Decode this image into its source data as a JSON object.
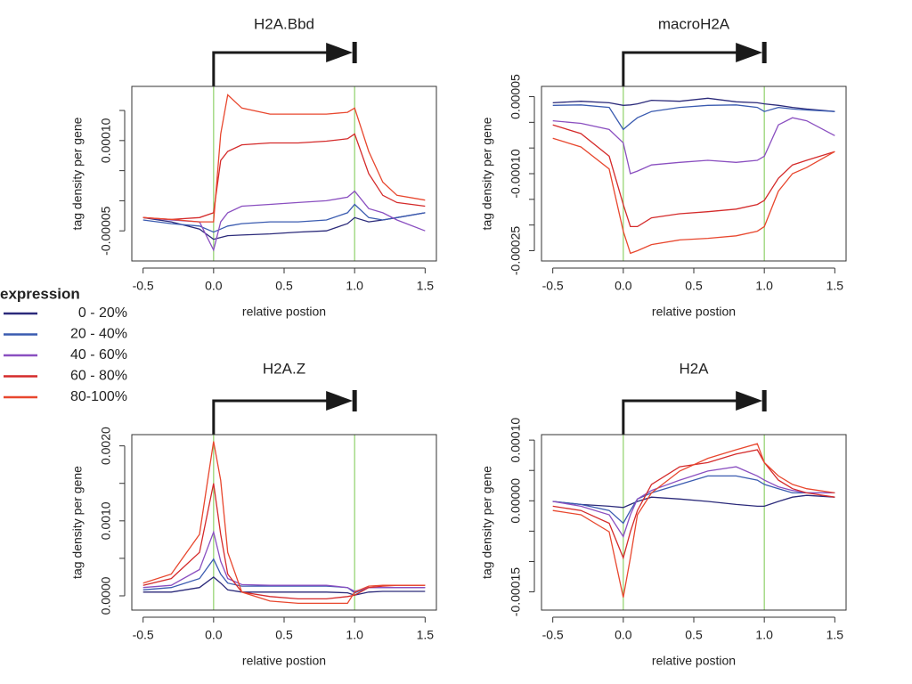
{
  "chart_data": [
    {
      "type": "line",
      "title": "H2A.Bbd",
      "xlabel": "relative postion",
      "ylabel": "tag density per gene",
      "legend_title": "expression",
      "xlim": [
        -0.58,
        1.58
      ],
      "ylim": [
        -0.0001,
        0.00019
      ],
      "xticks": [
        -0.5,
        {
          "value": 0,
          "label": "0.0"
        },
        0.5,
        {
          "value": 1,
          "label": "1.0"
        },
        1.5
      ],
      "yticks": [
        -5e-05,
        {
          "value": 0.0001,
          "label": "0.00010"
        }
      ],
      "yminor_ticks": [
        0,
        5e-05,
        0.00015
      ],
      "vlines": [
        0,
        1
      ],
      "vline_color": "#8fd16a",
      "x": [
        -0.5,
        -0.3,
        -0.1,
        0,
        0.05,
        0.1,
        0.2,
        0.4,
        0.6,
        0.8,
        0.95,
        1,
        1.1,
        1.2,
        1.3,
        1.5
      ],
      "series": [
        {
          "name": "0 - 20%",
          "color": "#2b2a7a",
          "values": [
            -2.8e-05,
            -3.5e-05,
            -4.7e-05,
            -6.4e-05,
            -6.1e-05,
            -5.8e-05,
            -5.7e-05,
            -5.5e-05,
            -5.2e-05,
            -5e-05,
            -3.8e-05,
            -2.8e-05,
            -3.5e-05,
            -3.2e-05,
            -2.8e-05,
            -2e-05
          ]
        },
        {
          "name": "20 - 40%",
          "color": "#3a5bb0",
          "values": [
            -3.2e-05,
            -3.8e-05,
            -4.2e-05,
            -5.2e-05,
            -4.7e-05,
            -4.2e-05,
            -3.8e-05,
            -3.5e-05,
            -3.5e-05,
            -3.2e-05,
            -2e-05,
            -6e-06,
            -2.8e-05,
            -3.2e-05,
            -2.8e-05,
            -2e-05
          ]
        },
        {
          "name": "40 - 60%",
          "color": "#8a4fc0",
          "values": [
            -2.8e-05,
            -3.2e-05,
            -3.5e-05,
            -8.2e-05,
            -3.5e-05,
            -2e-05,
            -9e-06,
            -6e-06,
            -3e-06,
            0,
            6e-06,
            1.6e-05,
            -1.3e-05,
            -2e-05,
            -3.2e-05,
            -5e-05
          ]
        },
        {
          "name": "60 - 80%",
          "color": "#d42a2a",
          "values": [
            -2.8e-05,
            -3.1e-05,
            -2.8e-05,
            -2e-05,
            6.7e-05,
            8.2e-05,
            9.3e-05,
            9.6e-05,
            9.6e-05,
            9.9e-05,
            0.000103,
            0.000111,
            4.5e-05,
            9e-06,
            -3e-06,
            -9e-06
          ]
        },
        {
          "name": "80-100%",
          "color": "#e8472e",
          "values": [
            -2.8e-05,
            -3.1e-05,
            -3.5e-05,
            -3.5e-05,
            0.000111,
            0.000176,
            0.000154,
            0.000144,
            0.000144,
            0.000144,
            0.000147,
            0.000154,
            8.2e-05,
            3.1e-05,
            9e-06,
            1e-06
          ]
        }
      ]
    },
    {
      "type": "line",
      "title": "macroH2A",
      "xlabel": "relative postion",
      "ylabel": "tag density per gene",
      "xlim": [
        -0.58,
        1.58
      ],
      "ylim": [
        -0.00027,
        7e-05
      ],
      "xticks": [
        -0.5,
        {
          "value": 0,
          "label": "0.0"
        },
        0.5,
        {
          "value": 1,
          "label": "1.0"
        },
        1.5
      ],
      "yticks": [
        5e-05,
        {
          "value": -0.0001,
          "label": "-0.00010"
        },
        -0.00025
      ],
      "yminor_ticks": [
        0,
        -5e-05,
        -0.00015,
        -0.0002
      ],
      "vlines": [
        0,
        1
      ],
      "vline_color": "#8fd16a",
      "x": [
        -0.5,
        -0.3,
        -0.1,
        0,
        0.05,
        0.1,
        0.2,
        0.4,
        0.6,
        0.8,
        0.95,
        1,
        1.1,
        1.2,
        1.3,
        1.5
      ],
      "series": [
        {
          "name": "0 - 20%",
          "color": "#2b2a7a",
          "values": [
            3.8e-05,
            4.1e-05,
            3.8e-05,
            3.3e-05,
            3.4e-05,
            3.6e-05,
            4.3e-05,
            4.1e-05,
            4.7e-05,
            4e-05,
            3.8e-05,
            3.6e-05,
            3.3e-05,
            2.9e-05,
            2.6e-05,
            2.1e-05
          ]
        },
        {
          "name": "20 - 40%",
          "color": "#3a5bb0",
          "values": [
            3.3e-05,
            3.4e-05,
            2.9e-05,
            -1.4e-05,
            -2e-06,
            9e-06,
            2.1e-05,
            2.9e-05,
            3.3e-05,
            3.4e-05,
            2.9e-05,
            2.1e-05,
            2.9e-05,
            2.6e-05,
            2.4e-05,
            2.1e-05
          ]
        },
        {
          "name": "40 - 60%",
          "color": "#8a4fc0",
          "values": [
            3e-06,
            -2e-06,
            -1.4e-05,
            -4e-05,
            -0.0001,
            -9.5e-05,
            -8.3e-05,
            -7.8e-05,
            -7.4e-05,
            -7.8e-05,
            -7.4e-05,
            -6.6e-05,
            -5e-06,
            9e-06,
            3e-06,
            -2.6e-05
          ]
        },
        {
          "name": "60 - 80%",
          "color": "#d42a2a",
          "values": [
            -5e-06,
            -2.2e-05,
            -6.6e-05,
            -0.00016,
            -0.000203,
            -0.000203,
            -0.000186,
            -0.000178,
            -0.000174,
            -0.000169,
            -0.00016,
            -0.000152,
            -0.000109,
            -8.3e-05,
            -7.4e-05,
            -5.7e-05
          ]
        },
        {
          "name": "80-100%",
          "color": "#e8472e",
          "values": [
            -3.1e-05,
            -4.8e-05,
            -9.1e-05,
            -0.000212,
            -0.000255,
            -0.00025,
            -0.000238,
            -0.000229,
            -0.000226,
            -0.000221,
            -0.000212,
            -0.000203,
            -0.000134,
            -0.0001,
            -8.8e-05,
            -5.7e-05
          ]
        }
      ]
    },
    {
      "type": "line",
      "title": "H2A.Z",
      "xlabel": "relative postion",
      "ylabel": "tag density per gene",
      "xlim": [
        -0.58,
        1.58
      ],
      "ylim": [
        -0.00019,
        0.00215
      ],
      "xticks": [
        -0.5,
        {
          "value": 0,
          "label": "0.0"
        },
        0.5,
        {
          "value": 1,
          "label": "1.0"
        },
        1.5
      ],
      "yticks": [
        {
          "value": 0,
          "label": "0.0000"
        },
        {
          "value": 0.001,
          "label": "0.0010"
        },
        {
          "value": 0.002,
          "label": "0.0020"
        }
      ],
      "yminor_ticks": [
        0.0005,
        0.0015
      ],
      "vlines": [
        0,
        1
      ],
      "vline_color": "#8fd16a",
      "x": [
        -0.5,
        -0.3,
        -0.1,
        0,
        0.05,
        0.1,
        0.2,
        0.4,
        0.6,
        0.8,
        0.95,
        1,
        1.1,
        1.2,
        1.3,
        1.5
      ],
      "series": [
        {
          "name": "0 - 20%",
          "color": "#2b2a7a",
          "values": [
            5e-05,
            5e-05,
            0.00011,
            0.00025,
            0.00017,
            8e-05,
            5e-05,
            5e-05,
            5e-05,
            5e-05,
            4e-05,
            1e-05,
            5e-05,
            6e-05,
            6e-05,
            6e-05
          ]
        },
        {
          "name": "20 - 40%",
          "color": "#3a5bb0",
          "values": [
            8e-05,
            0.00011,
            0.00023,
            0.00049,
            0.00029,
            0.00017,
            0.00013,
            0.00013,
            0.00013,
            0.00013,
            0.00011,
            4e-05,
            0.00011,
            0.00011,
            0.00011,
            0.00011
          ]
        },
        {
          "name": "40 - 60%",
          "color": "#8a4fc0",
          "values": [
            0.00011,
            0.00014,
            0.00035,
            0.00085,
            0.00046,
            0.00023,
            0.00015,
            0.00014,
            0.00014,
            0.00014,
            0.00011,
            6e-05,
            0.00011,
            0.00011,
            0.00011,
            0.00011
          ]
        },
        {
          "name": "60 - 80%",
          "color": "#d42a2a",
          "values": [
            0.00014,
            0.00023,
            0.00058,
            0.0015,
            0.00082,
            0.00029,
            5e-05,
            -1e-05,
            -4e-05,
            -4e-05,
            -1e-05,
            1e-05,
            0.00011,
            0.00013,
            0.00014,
            0.00014
          ]
        },
        {
          "name": "80-100%",
          "color": "#e8472e",
          "values": [
            0.00017,
            0.00029,
            0.00082,
            0.00206,
            0.00154,
            0.00058,
            5e-05,
            -7e-05,
            -0.0001,
            -0.0001,
            -0.0001,
            5e-05,
            0.00013,
            0.00014,
            0.00014,
            0.00014
          ]
        }
      ]
    },
    {
      "type": "line",
      "title": "H2A",
      "xlabel": "relative postion",
      "ylabel": "tag density per gene",
      "xlim": [
        -0.58,
        1.58
      ],
      "ylim": [
        -0.00018,
        0.000109
      ],
      "xticks": [
        -0.5,
        {
          "value": 0,
          "label": "0.0"
        },
        0.5,
        {
          "value": 1,
          "label": "1.0"
        },
        1.5
      ],
      "yticks": [
        {
          "value": 0.0001,
          "label": "0.00010"
        },
        {
          "value": 0,
          "label": "0.00000"
        },
        -0.00015
      ],
      "yminor_ticks": [
        5e-05,
        -5e-05,
        -0.0001
      ],
      "vlines": [
        0,
        1
      ],
      "vline_color": "#8fd16a",
      "x": [
        -0.5,
        -0.3,
        -0.1,
        0,
        0.05,
        0.1,
        0.2,
        0.4,
        0.6,
        0.8,
        0.95,
        1,
        1.1,
        1.2,
        1.3,
        1.5
      ],
      "series": [
        {
          "name": "0 - 20%",
          "color": "#2b2a7a",
          "values": [
            -1e-06,
            -6e-06,
            -9e-06,
            -1.1e-05,
            -6e-06,
            -1e-06,
            6e-06,
            3e-06,
            -1e-06,
            -6e-06,
            -9e-06,
            -9e-06,
            -1e-06,
            6e-06,
            9e-06,
            6e-06
          ]
        },
        {
          "name": "20 - 40%",
          "color": "#3a5bb0",
          "values": [
            -1e-06,
            -6e-06,
            -1.6e-05,
            -3.7e-05,
            -1.6e-05,
            3e-06,
            1.3e-05,
            2.7e-05,
            4.1e-05,
            4.1e-05,
            3.4e-05,
            2.7e-05,
            2e-05,
            1.3e-05,
            1.3e-05,
            1.3e-05
          ]
        },
        {
          "name": "40 - 60%",
          "color": "#8a4fc0",
          "values": [
            -1e-06,
            -9e-06,
            -2.3e-05,
            -5.9e-05,
            -2.3e-05,
            3e-06,
            1.7e-05,
            3.4e-05,
            4.9e-05,
            5.6e-05,
            4.1e-05,
            3.4e-05,
            2.3e-05,
            1.7e-05,
            1.3e-05,
            1.3e-05
          ]
        },
        {
          "name": "60 - 80%",
          "color": "#d42a2a",
          "values": [
            -9e-06,
            -1.6e-05,
            -3.7e-05,
            -9.4e-05,
            -5.1e-05,
            -1.6e-05,
            2.7e-05,
            5.6e-05,
            6.3e-05,
            7.7e-05,
            8.4e-05,
            6.3e-05,
            3.4e-05,
            2e-05,
            1.3e-05,
            6e-06
          ]
        },
        {
          "name": "80-100%",
          "color": "#e8472e",
          "values": [
            -1.6e-05,
            -2.3e-05,
            -5.1e-05,
            -0.000159,
            -9.4e-05,
            -2.3e-05,
            1.3e-05,
            4.9e-05,
            7e-05,
            8.4e-05,
            9.4e-05,
            6.3e-05,
            4.1e-05,
            2.7e-05,
            2e-05,
            1.3e-05
          ]
        }
      ]
    }
  ]
}
